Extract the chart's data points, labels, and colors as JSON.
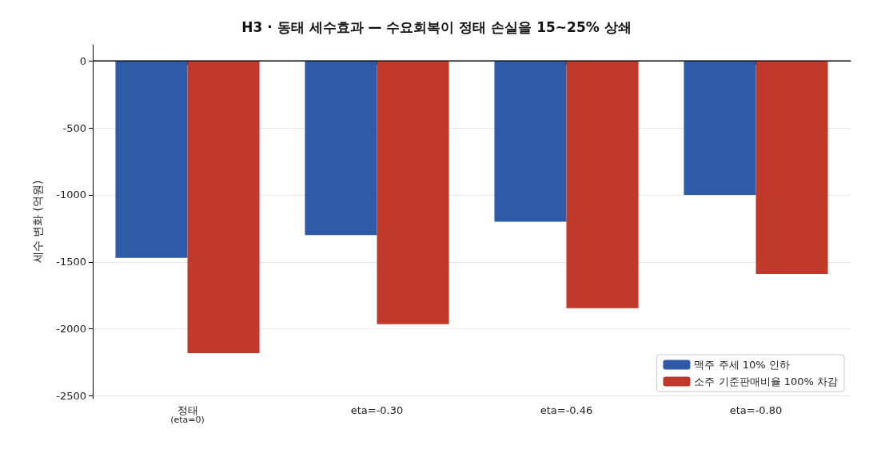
{
  "chart_data": {
    "type": "bar",
    "title": "H3 · 동태 세수효과 — 수요회복이 정태 손실을 15~25% 상쇄",
    "ylabel": "세수 변화 (억원)",
    "categories": [
      "정태\n(eta=0)",
      "eta=-0.30",
      "eta=-0.46",
      "eta=-0.80"
    ],
    "series": [
      {
        "name": "맥주 주세 10% 인하",
        "color": "#2e5aa8",
        "values": [
          -1470,
          -1300,
          -1200,
          -1000
        ]
      },
      {
        "name": "소주 기준판매비율 100% 차감",
        "color": "#c0392b",
        "values": [
          -2180,
          -1965,
          -1845,
          -1590
        ]
      }
    ],
    "ylim": [
      -2520,
      120
    ],
    "yticks": [
      -2500,
      -2000,
      -1500,
      -1000,
      -500,
      0
    ],
    "ref_lines": [
      {
        "axis": "y",
        "value": 0,
        "color": "#000000",
        "line_style": "solid"
      }
    ],
    "grid": "y",
    "legend": "bottom right"
  }
}
